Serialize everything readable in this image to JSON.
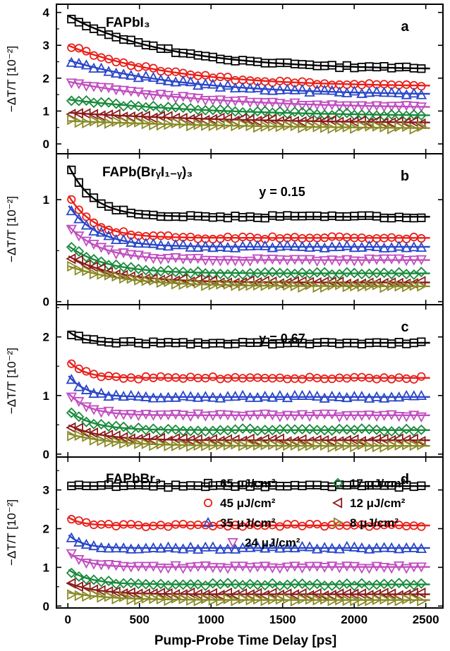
{
  "chart_data": {
    "type": "scatter",
    "xlabel": "Pump-Probe Time Delay [ps]",
    "x_ticks": [
      "0",
      "500",
      "1000",
      "1500",
      "2000",
      "2500"
    ],
    "xlim": [
      -80,
      2620
    ],
    "legend": {
      "placement": "inside panel d, bottom-right",
      "entries": [
        {
          "series": "65",
          "label": "65 μJ/cm²",
          "color": "#000000",
          "marker": "square"
        },
        {
          "series": "17",
          "label": "17 μJ/cm²",
          "color": "#1a8a3c",
          "marker": "diamond"
        },
        {
          "series": "45",
          "label": "45 μJ/cm²",
          "color": "#e8201a",
          "marker": "circle"
        },
        {
          "series": "12",
          "label": "12 μJ/cm²",
          "color": "#8b1a1a",
          "marker": "triangle-left"
        },
        {
          "series": "35",
          "label": "35 μJ/cm²",
          "color": "#2a47c8",
          "marker": "triangle-up"
        },
        {
          "series": "8",
          "label": "8 μJ/cm²",
          "color": "#8a8a26",
          "marker": "triangle-right"
        },
        {
          "series": "24",
          "label": "24 μJ/cm²",
          "color": "#c04fc0",
          "marker": "triangle-down"
        }
      ]
    },
    "panels": [
      {
        "id": "a",
        "title": "FAPbI₃",
        "annotation": "",
        "ylabel": "−ΔT/T [10⁻²]",
        "ylim": [
          -0.3,
          4.25
        ],
        "y_ticks": [
          "0",
          "1",
          "2",
          "3",
          "4"
        ],
        "series": [
          {
            "name": "65",
            "y0": 3.9,
            "b": 0.45,
            "tau": 700,
            "yinf": 0.9
          },
          {
            "name": "45",
            "y0": 3.0,
            "b": 0.4,
            "tau": 700,
            "yinf": 0.9
          },
          {
            "name": "35",
            "y0": 2.55,
            "b": 0.35,
            "tau": 800,
            "yinf": 0.9
          },
          {
            "name": "24",
            "y0": 1.9,
            "b": 0.25,
            "tau": 900,
            "yinf": 0.8
          },
          {
            "name": "17",
            "y0": 1.35,
            "b": 0.2,
            "tau": 1000,
            "yinf": 0.7
          },
          {
            "name": "12",
            "y0": 0.95,
            "b": 0.15,
            "tau": 1200,
            "yinf": 0.55
          },
          {
            "name": "8",
            "y0": 0.7,
            "b": 0.1,
            "tau": 1500,
            "yinf": 0.4
          }
        ]
      },
      {
        "id": "b",
        "title": "FAPb(BrᵧI₁₋ᵧ)₃",
        "annotation": "y = 0.15",
        "ylabel": "−ΔT/T [10⁻²]",
        "ylim": [
          -0.03,
          1.45
        ],
        "y_ticks": [
          "0",
          "1"
        ],
        "series": [
          {
            "name": "65",
            "y0": 1.35,
            "b": 0.55,
            "tau": 170,
            "yinf": 0.2
          },
          {
            "name": "45",
            "y0": 1.05,
            "b": 0.5,
            "tau": 180,
            "yinf": 0.2
          },
          {
            "name": "35",
            "y0": 0.95,
            "b": 0.45,
            "tau": 200,
            "yinf": 0.2
          },
          {
            "name": "24",
            "y0": 0.75,
            "b": 0.4,
            "tau": 220,
            "yinf": 0.18
          },
          {
            "name": "17",
            "y0": 0.55,
            "b": 0.3,
            "tau": 260,
            "yinf": 0.16
          },
          {
            "name": "12",
            "y0": 0.45,
            "b": 0.25,
            "tau": 320,
            "yinf": 0.1
          },
          {
            "name": "8",
            "y0": 0.35,
            "b": 0.2,
            "tau": 400,
            "yinf": 0.1
          }
        ]
      },
      {
        "id": "c",
        "title": "",
        "annotation": "y = 0.67",
        "ylabel": "−ΔT/T [10⁻²]",
        "ylim": [
          -0.05,
          2.55
        ],
        "y_ticks": [
          "0",
          "1",
          "2"
        ],
        "series": [
          {
            "name": "65",
            "y0": 2.1,
            "b": 0.9,
            "tau": 100,
            "yinf": 0.1
          },
          {
            "name": "45",
            "y0": 1.6,
            "b": 0.8,
            "tau": 110,
            "yinf": 0.1
          },
          {
            "name": "35",
            "y0": 1.35,
            "b": 0.7,
            "tau": 120,
            "yinf": 0.1
          },
          {
            "name": "24",
            "y0": 1.05,
            "b": 0.6,
            "tau": 140,
            "yinf": 0.08
          },
          {
            "name": "17",
            "y0": 0.75,
            "b": 0.5,
            "tau": 170,
            "yinf": 0.07
          },
          {
            "name": "12",
            "y0": 0.5,
            "b": 0.4,
            "tau": 220,
            "yinf": 0.06
          },
          {
            "name": "8",
            "y0": 0.35,
            "b": 0.3,
            "tau": 300,
            "yinf": 0.05
          }
        ]
      },
      {
        "id": "d",
        "title": "FAPbBr₃",
        "annotation": "",
        "ylabel": "−ΔT/T [10⁻²]",
        "ylim": [
          -0.05,
          3.85
        ],
        "y_ticks": [
          "0",
          "1",
          "2",
          "3"
        ],
        "series": [
          {
            "name": "65",
            "y0": 3.1,
            "b": 1.0,
            "tau": 80,
            "yinf": 0.12
          },
          {
            "name": "45",
            "y0": 2.3,
            "b": 0.9,
            "tau": 90,
            "yinf": 0.12
          },
          {
            "name": "35",
            "y0": 1.85,
            "b": 0.8,
            "tau": 100,
            "yinf": 0.1
          },
          {
            "name": "24",
            "y0": 1.4,
            "b": 0.7,
            "tau": 120,
            "yinf": 0.1
          },
          {
            "name": "17",
            "y0": 0.95,
            "b": 0.55,
            "tau": 150,
            "yinf": 0.08
          },
          {
            "name": "12",
            "y0": 0.6,
            "b": 0.45,
            "tau": 200,
            "yinf": 0.06
          },
          {
            "name": "8",
            "y0": 0.35,
            "b": 0.35,
            "tau": 280,
            "yinf": 0.05
          }
        ]
      }
    ]
  }
}
